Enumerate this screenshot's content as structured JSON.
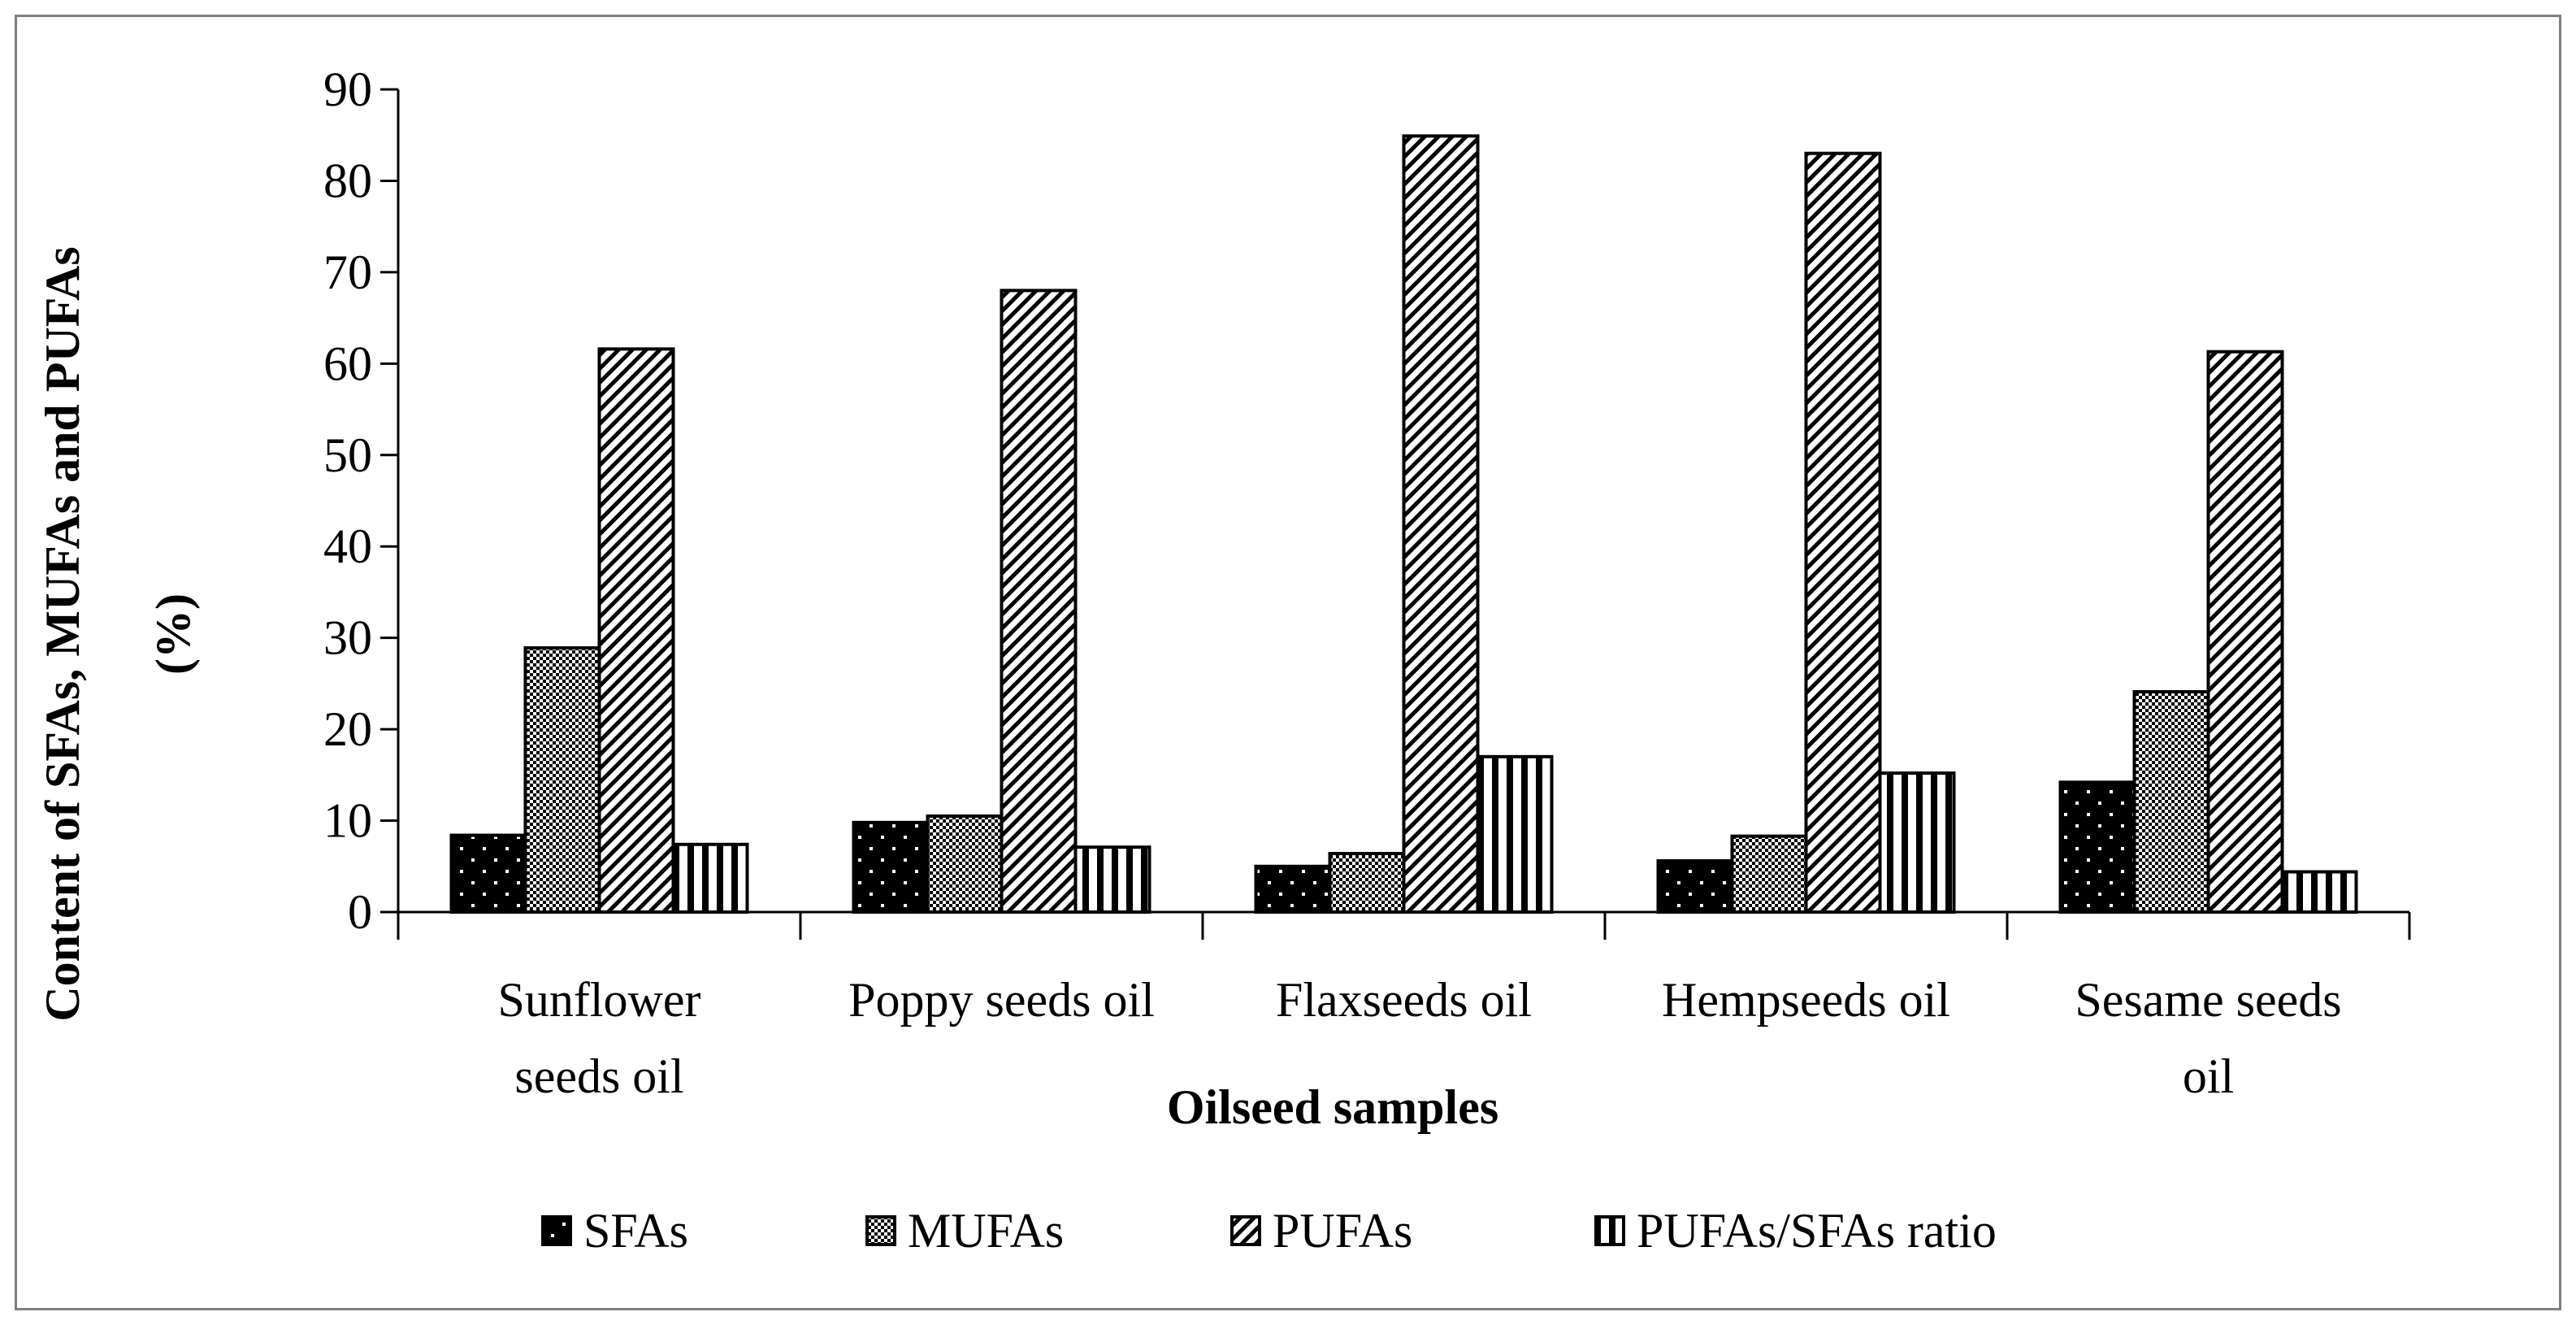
{
  "chart_data": {
    "type": "bar",
    "title": "",
    "xlabel": "Oilseed samples",
    "ylabel": [
      "Content of SFAs, MUFAs and PUFAs",
      "(%)"
    ],
    "ylim": [
      0,
      90
    ],
    "yticks": [
      "0",
      "10",
      "20",
      "30",
      "40",
      "50",
      "60",
      "70",
      "80",
      "90"
    ],
    "categories": [
      [
        "Sunflower",
        "seeds oil"
      ],
      [
        "Poppy seeds oil"
      ],
      [
        "Flaxseeds oil"
      ],
      [
        "Hempseeds oil"
      ],
      [
        "Sesame seeds",
        "oil"
      ]
    ],
    "series": [
      {
        "name": "SFAs",
        "pattern": "dots",
        "values": [
          8.4,
          9.8,
          5.0,
          5.6,
          14.2
        ]
      },
      {
        "name": "MUFAs",
        "pattern": "checker",
        "values": [
          28.9,
          10.5,
          6.4,
          8.3,
          24.1
        ]
      },
      {
        "name": "PUFAs",
        "pattern": "diagonal",
        "values": [
          61.6,
          68.0,
          84.9,
          83.0,
          61.3
        ]
      },
      {
        "name": "PUFAs/SFAs ratio",
        "pattern": "vertical",
        "values": [
          7.4,
          7.1,
          17.0,
          15.2,
          4.4
        ]
      }
    ],
    "legend_position": "bottom",
    "grid": false
  }
}
